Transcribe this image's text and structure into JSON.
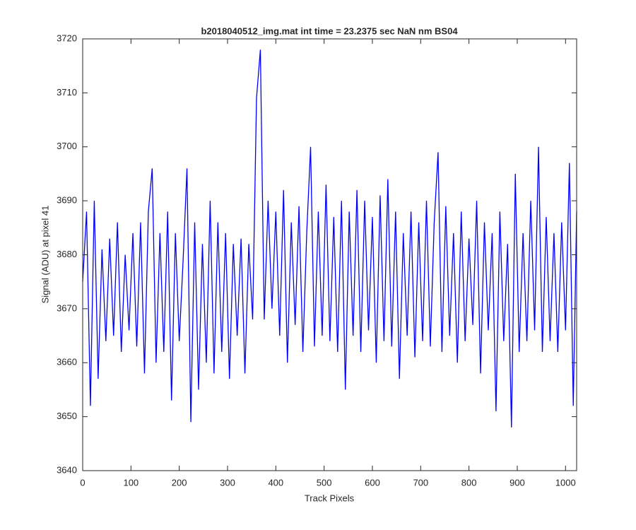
{
  "chart_data": {
    "type": "line",
    "title": "b2018040512_img.mat int time = 23.2375 sec  NaN nm BS04",
    "x_label": "Track Pixels",
    "y_label": "Signal (ADU) at pixel 41",
    "xlim": [
      0,
      1023
    ],
    "ylim": [
      3640,
      3720
    ],
    "xticks": [
      0,
      100,
      200,
      300,
      400,
      500,
      600,
      700,
      800,
      900,
      1000
    ],
    "yticks": [
      3640,
      3650,
      3660,
      3670,
      3680,
      3690,
      3700,
      3710,
      3720
    ],
    "grid": false,
    "series": [
      {
        "name": "signal",
        "color": "#0000ff",
        "x": [
          0,
          8,
          16,
          24,
          32,
          40,
          48,
          56,
          64,
          72,
          80,
          88,
          96,
          104,
          112,
          120,
          128,
          136,
          144,
          152,
          160,
          168,
          176,
          184,
          192,
          200,
          208,
          216,
          224,
          232,
          240,
          248,
          256,
          264,
          272,
          280,
          288,
          296,
          304,
          312,
          320,
          328,
          336,
          344,
          352,
          360,
          368,
          376,
          384,
          392,
          400,
          408,
          416,
          424,
          432,
          440,
          448,
          456,
          464,
          472,
          480,
          488,
          496,
          504,
          512,
          520,
          528,
          536,
          544,
          552,
          560,
          568,
          576,
          584,
          592,
          600,
          608,
          616,
          624,
          632,
          640,
          648,
          656,
          664,
          672,
          680,
          688,
          696,
          704,
          712,
          720,
          728,
          736,
          744,
          752,
          760,
          768,
          776,
          784,
          792,
          800,
          808,
          816,
          824,
          832,
          840,
          848,
          856,
          864,
          872,
          880,
          888,
          896,
          904,
          912,
          920,
          928,
          936,
          944,
          952,
          960,
          968,
          976,
          984,
          992,
          1000,
          1008,
          1016,
          1023
        ],
        "values": [
          3675,
          3688,
          3652,
          3690,
          3657,
          3681,
          3664,
          3683,
          3665,
          3686,
          3662,
          3680,
          3666,
          3684,
          3663,
          3686,
          3658,
          3688,
          3696,
          3660,
          3684,
          3662,
          3688,
          3653,
          3684,
          3664,
          3679,
          3696,
          3649,
          3686,
          3655,
          3682,
          3660,
          3690,
          3658,
          3686,
          3662,
          3684,
          3657,
          3682,
          3665,
          3683,
          3658,
          3682,
          3668,
          3709,
          3718,
          3668,
          3690,
          3670,
          3688,
          3665,
          3692,
          3660,
          3686,
          3667,
          3689,
          3662,
          3684,
          3700,
          3663,
          3688,
          3665,
          3693,
          3664,
          3687,
          3662,
          3690,
          3655,
          3688,
          3665,
          3692,
          3662,
          3690,
          3666,
          3687,
          3660,
          3691,
          3664,
          3694,
          3663,
          3688,
          3657,
          3684,
          3665,
          3688,
          3661,
          3686,
          3664,
          3690,
          3663,
          3686,
          3699,
          3662,
          3689,
          3665,
          3684,
          3660,
          3688,
          3664,
          3683,
          3667,
          3690,
          3658,
          3686,
          3666,
          3684,
          3651,
          3688,
          3664,
          3682,
          3648,
          3695,
          3662,
          3684,
          3664,
          3690,
          3666,
          3700,
          3662,
          3687,
          3664,
          3684,
          3662,
          3686,
          3666,
          3697,
          3652,
          3688
        ]
      }
    ]
  }
}
